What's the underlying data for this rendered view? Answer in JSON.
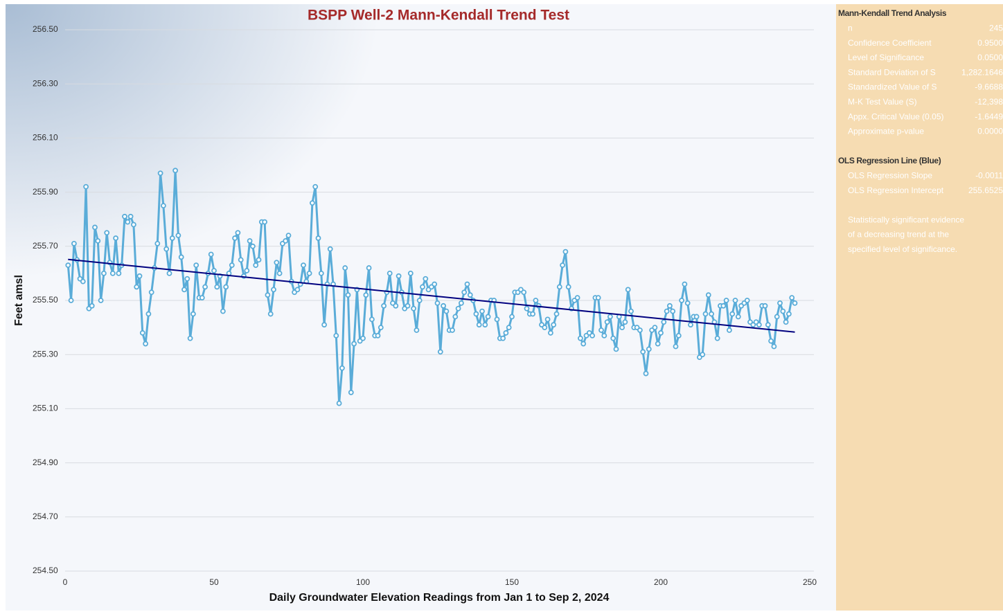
{
  "chart_data": {
    "type": "line",
    "title": "BSPP Well-2 Mann-Kendall Trend Test",
    "xlabel": "Daily Groundwater Elevation Readings from Jan 1 to Sep 2, 2024",
    "ylabel": "Feet amsl",
    "xlim": [
      0,
      250
    ],
    "xticks": [
      0,
      50,
      100,
      150,
      200,
      250
    ],
    "ylim": [
      254.5,
      256.5
    ],
    "yticks": [
      {
        "value": 254.5,
        "label": "254.50"
      },
      {
        "value": 254.7,
        "label": "254.70"
      },
      {
        "value": 254.9,
        "label": "254.90"
      },
      {
        "value": 255.1,
        "label": "255.10"
      },
      {
        "value": 255.3,
        "label": "255.30"
      },
      {
        "value": 255.5,
        "label": "255.50"
      },
      {
        "value": 255.7,
        "label": "255.70"
      },
      {
        "value": 255.9,
        "label": "255.90"
      },
      {
        "value": 256.1,
        "label": "256.10"
      },
      {
        "value": 256.3,
        "label": "256.30"
      },
      {
        "value": 256.5,
        "label": "256.50"
      }
    ],
    "grid": true,
    "x": [
      1,
      2,
      3,
      4,
      5,
      6,
      7,
      8,
      9,
      10,
      11,
      12,
      13,
      14,
      15,
      16,
      17,
      18,
      19,
      20,
      21,
      22,
      23,
      24,
      25,
      26,
      27,
      28,
      29,
      30,
      31,
      32,
      33,
      34,
      35,
      36,
      37,
      38,
      39,
      40,
      41,
      42,
      43,
      44,
      45,
      46,
      47,
      48,
      49,
      50,
      51,
      52,
      53,
      54,
      55,
      56,
      57,
      58,
      59,
      60,
      61,
      62,
      63,
      64,
      65,
      66,
      67,
      68,
      69,
      70,
      71,
      72,
      73,
      74,
      75,
      76,
      77,
      78,
      79,
      80,
      81,
      82,
      83,
      84,
      85,
      86,
      87,
      88,
      89,
      90,
      91,
      92,
      93,
      94,
      95,
      96,
      97,
      98,
      99,
      100,
      101,
      102,
      103,
      104,
      105,
      106,
      107,
      108,
      109,
      110,
      111,
      112,
      113,
      114,
      115,
      116,
      117,
      118,
      119,
      120,
      121,
      122,
      123,
      124,
      125,
      126,
      127,
      128,
      129,
      130,
      131,
      132,
      133,
      134,
      135,
      136,
      137,
      138,
      139,
      140,
      141,
      142,
      143,
      144,
      145,
      146,
      147,
      148,
      149,
      150,
      151,
      152,
      153,
      154,
      155,
      156,
      157,
      158,
      159,
      160,
      161,
      162,
      163,
      164,
      165,
      166,
      167,
      168,
      169,
      170,
      171,
      172,
      173,
      174,
      175,
      176,
      177,
      178,
      179,
      180,
      181,
      182,
      183,
      184,
      185,
      186,
      187,
      188,
      189,
      190,
      191,
      192,
      193,
      194,
      195,
      196,
      197,
      198,
      199,
      200,
      201,
      202,
      203,
      204,
      205,
      206,
      207,
      208,
      209,
      210,
      211,
      212,
      213,
      214,
      215,
      216,
      217,
      218,
      219,
      220,
      221,
      222,
      223,
      224,
      225,
      226,
      227,
      228,
      229,
      230,
      231,
      232,
      233,
      234,
      235,
      236,
      237,
      238,
      239,
      240,
      241,
      242,
      243,
      244,
      245
    ],
    "series": [
      {
        "color": "#5aacd8",
        "values": [
          255.63,
          255.5,
          255.71,
          255.65,
          255.58,
          255.57,
          255.92,
          255.47,
          255.48,
          255.77,
          255.72,
          255.5,
          255.6,
          255.75,
          255.64,
          255.6,
          255.73,
          255.6,
          255.63,
          255.81,
          255.79,
          255.81,
          255.78,
          255.55,
          255.59,
          255.38,
          255.34,
          255.45,
          255.53,
          255.62,
          255.71,
          255.97,
          255.85,
          255.69,
          255.6,
          255.73,
          255.98,
          255.74,
          255.66,
          255.54,
          255.58,
          255.36,
          255.45,
          255.63,
          255.51,
          255.51,
          255.55,
          255.6,
          255.67,
          255.61,
          255.55,
          255.59,
          255.46,
          255.55,
          255.6,
          255.63,
          255.73,
          255.75,
          255.65,
          255.59,
          255.61,
          255.72,
          255.7,
          255.63,
          255.65,
          255.79,
          255.79,
          255.52,
          255.45,
          255.54,
          255.64,
          255.6,
          255.71,
          255.72,
          255.74,
          255.57,
          255.53,
          255.54,
          255.56,
          255.63,
          255.57,
          255.6,
          255.86,
          255.92,
          255.73,
          255.6,
          255.41,
          255.56,
          255.69,
          255.56,
          255.37,
          255.12,
          255.25,
          255.62,
          255.52,
          255.16,
          255.34,
          255.54,
          255.35,
          255.36,
          255.52,
          255.62,
          255.43,
          255.37,
          255.37,
          255.4,
          255.48,
          255.53,
          255.6,
          255.49,
          255.48,
          255.59,
          255.53,
          255.47,
          255.48,
          255.6,
          255.47,
          255.39,
          255.5,
          255.55,
          255.58,
          255.54,
          255.55,
          255.56,
          255.49,
          255.31,
          255.48,
          255.46,
          255.39,
          255.39,
          255.44,
          255.47,
          255.49,
          255.53,
          255.56,
          255.52,
          255.5,
          255.45,
          255.41,
          255.46,
          255.41,
          255.44,
          255.5,
          255.5,
          255.43,
          255.36,
          255.36,
          255.38,
          255.4,
          255.44,
          255.53,
          255.53,
          255.54,
          255.53,
          255.47,
          255.45,
          255.45,
          255.5,
          255.48,
          255.41,
          255.4,
          255.43,
          255.38,
          255.41,
          255.45,
          255.55,
          255.63,
          255.68,
          255.55,
          255.47,
          255.5,
          255.51,
          255.36,
          255.34,
          255.37,
          255.38,
          255.37,
          255.51,
          255.51,
          255.39,
          255.37,
          255.42,
          255.44,
          255.36,
          255.32,
          255.44,
          255.4,
          255.42,
          255.54,
          255.46,
          255.4,
          255.4,
          255.39,
          255.31,
          255.23,
          255.32,
          255.39,
          255.4,
          255.34,
          255.38,
          255.42,
          255.46,
          255.48,
          255.46,
          255.33,
          255.37,
          255.5,
          255.56,
          255.49,
          255.41,
          255.44,
          255.44,
          255.29,
          255.3,
          255.45,
          255.52,
          255.45,
          255.42,
          255.36,
          255.48,
          255.48,
          255.5,
          255.39,
          255.45,
          255.5,
          255.44,
          255.48,
          255.49,
          255.5,
          255.42,
          255.41,
          255.42,
          255.41,
          255.48,
          255.48,
          255.41,
          255.35,
          255.33,
          255.44,
          255.49,
          255.46,
          255.42,
          255.45,
          255.51,
          255.49
        ]
      }
    ],
    "trend_line": {
      "color": "#00007f",
      "x": [
        1,
        245
      ],
      "values": [
        255.6514,
        255.383
      ]
    }
  },
  "panel": {
    "sections": [
      {
        "title": "Mann-Kendall Trend Analysis",
        "rows": [
          [
            "n",
            "245"
          ],
          [
            "Confidence Coefficient",
            "0.9500"
          ],
          [
            "Level of Significance",
            "0.0500"
          ],
          [
            "Standard Deviation of S",
            "1,282.1646"
          ],
          [
            "Standardized Value of S",
            "-9.6688"
          ],
          [
            "M-K Test Value (S)",
            "-12,398"
          ],
          [
            "Appx. Critical Value (0.05)",
            "-1.6449"
          ],
          [
            "Approximate p-value",
            "0.0000"
          ]
        ]
      },
      {
        "title": "OLS Regression Line (Blue)",
        "rows": [
          [
            "OLS Regression Slope",
            "-0.0011"
          ],
          [
            "OLS Regression Intercept",
            "255.6525"
          ]
        ]
      }
    ],
    "note": [
      "Statistically significant evidence",
      "of a decreasing trend at the",
      "specified level of significance."
    ]
  }
}
